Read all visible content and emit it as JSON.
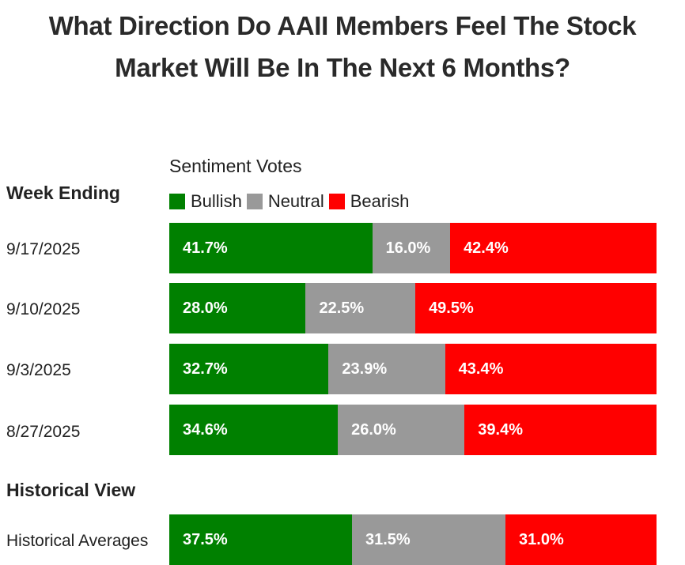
{
  "title": {
    "line1": "What Direction Do AAII Members Feel The Stock",
    "line2": "Market Will Be In The Next 6 Months?"
  },
  "colors": {
    "bullish": "#008000",
    "neutral": "#999999",
    "bearish": "#ff0000"
  },
  "sentiment_votes_label": "Sentiment Votes",
  "week_ending_label": "Week Ending",
  "historical_view_label": "Historical View",
  "legend": [
    "Bullish",
    "Neutral",
    "Bearish"
  ],
  "chart_data": {
    "type": "bar",
    "orientation": "horizontal-stacked-100",
    "title": "What Direction Do AAII Members Feel The Stock Market Will Be In The Next 6 Months?",
    "series_names": [
      "Bullish",
      "Neutral",
      "Bearish"
    ],
    "rows": [
      {
        "label": "9/17/2025",
        "values": [
          41.7,
          16.0,
          42.4
        ],
        "labels": [
          "41.7%",
          "16.0%",
          "42.4%"
        ]
      },
      {
        "label": "9/10/2025",
        "values": [
          28.0,
          22.5,
          49.5
        ],
        "labels": [
          "28.0%",
          "22.5%",
          "49.5%"
        ]
      },
      {
        "label": "9/3/2025",
        "values": [
          32.7,
          23.9,
          43.4
        ],
        "labels": [
          "32.7%",
          "23.9%",
          "43.4%"
        ]
      },
      {
        "label": "8/27/2025",
        "values": [
          34.6,
          26.0,
          39.4
        ],
        "labels": [
          "34.6%",
          "26.0%",
          "39.4%"
        ]
      }
    ],
    "historical": [
      {
        "label": "Historical Averages",
        "values": [
          37.5,
          31.5,
          31.0
        ],
        "labels": [
          "37.5%",
          "31.5%",
          "31.0%"
        ]
      }
    ]
  }
}
